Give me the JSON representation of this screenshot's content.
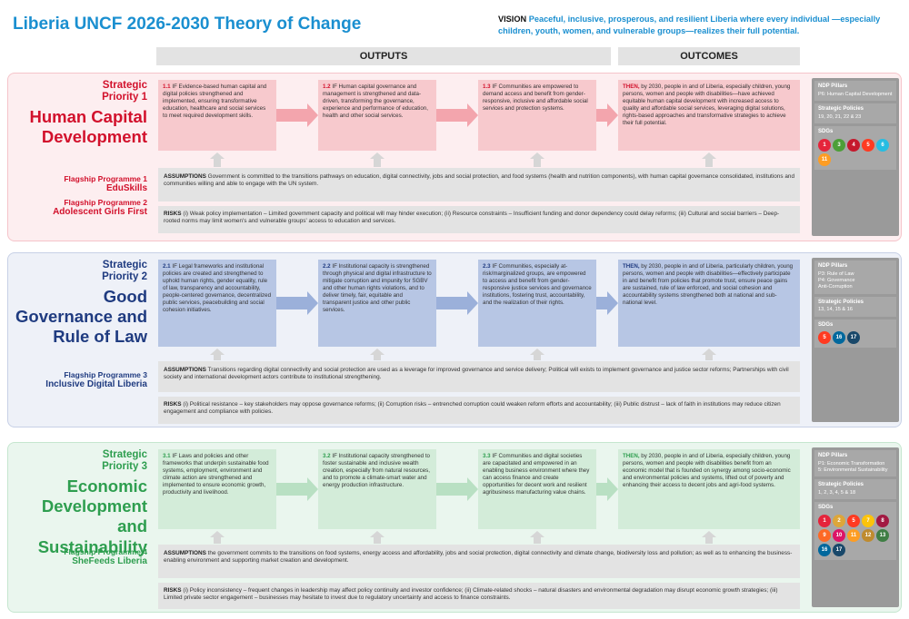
{
  "header": {
    "title": "Liberia UNCF 2026-2030 Theory of Change",
    "vision_label": "VISION",
    "vision": "Peaceful, inclusive, prosperous, and resilient Liberia where every individual —especially children, youth, women, and vulnerable groups—realizes their full potential."
  },
  "columns": {
    "outputs": "OUTPUTS",
    "outcomes": "OUTCOMES"
  },
  "labels": {
    "then": "THEN,",
    "assumptions": "ASSUMPTIONS",
    "risks": "RISKS",
    "ndp": "NDP Pillars",
    "policies": "Strategic Policies",
    "sdgs": "SDGs"
  },
  "priorities": [
    {
      "label": "Strategic Priority 1",
      "name": "Human Capital Development",
      "flagships": [
        {
          "label": "Flagship Programme 1",
          "name": "EduSkills"
        },
        {
          "label": "Flagship Programme 2",
          "name": "Adolescent Girls First"
        }
      ],
      "outputs": [
        {
          "id": "1.1",
          "text": "IF Evidence-based human capital and digital policies strengthened and implemented, ensuring transformative education, healthcare and social services to meet required development skills."
        },
        {
          "id": "1.2",
          "text": "IF Human capital governance and management is strengthened and data-driven, transforming the governance, experience and performance of education, health and other social services."
        },
        {
          "id": "1.3",
          "text": "IF Communities are empowered to demand access and benefit from gender-responsive, inclusive and affordable social services and protection systems."
        }
      ],
      "outcome": "by 2030, people in and of Liberia, especially children, young persons, women and people with disabilities—have achieved equitable human capital development with increased access to quality and affordable social services, leveraging digital solutions, rights-based approaches and transformative strategies to achieve their full potential.",
      "assumptions": "Government is committed to the transitions pathways on education, digital connectivity, jobs and social protection, and food systems (health and nutrition components), with human capital governance consolidated, institutions and communities willing and able to engage with the UN system.",
      "risks": "(i) Weak policy implementation – Limited government capacity and political will may hinder execution; (ii) Resource constraints – Insufficient funding and donor dependency could delay reforms; (iii) Cultural and social barriers – Deep-rooted norms may limit women's and vulnerable groups' access to education and services.",
      "ndp": [
        "P6: Human Capital Development"
      ],
      "policies": "19, 20, 21, 22 & 23",
      "sdgs": [
        1,
        3,
        4,
        5,
        6,
        11
      ]
    },
    {
      "label": "Strategic Priority 2",
      "name": "Good Governance and Rule of Law",
      "flagships": [
        {
          "label": "Flagship Programme 3",
          "name": "Inclusive Digital Liberia"
        }
      ],
      "outputs": [
        {
          "id": "2.1",
          "text": "IF Legal frameworks and institutional policies are created and strengthened to uphold human rights, gender equality, rule of law, transparency and accountability, people-centered governance, decentralized public services, peacebuilding and social cohesion initiatives."
        },
        {
          "id": "2.2",
          "text": "IF Institutional capacity is strengthened through physical and digital infrastructure to mitigate corruption and impunity for SGBV and other human rights violations, and to deliver timely, fair, equitable and transparent justice and other public services."
        },
        {
          "id": "2.3",
          "text": "IF Communities, especially at-risk/marginalized groups, are empowered to access and benefit from gender-responsive justice services and governance institutions, fostering trust, accountability, and the realization of their rights."
        }
      ],
      "outcome": "by 2030, people in and of Liberia, particularly children, young persons, women and people with disabilities—effectively participate in and benefit from policies that promote trust, ensure peace gains are sustained, rule of law enforced, and social cohesion and accountability systems strengthened both at national and sub-national level.",
      "assumptions": "Transitions regarding digital connectivity and social protection are used as a leverage for improved governance and service delivery; Political will exists to implement governance and justice sector reforms; Partnerships with civil society and international development actors contribute to institutional strengthening.",
      "risks": "(i) Political resistance – key stakeholders may oppose governance reforms; (ii) Corruption risks – entrenched corruption could weaken reform efforts and accountability; (iii) Public distrust – lack of faith in institutions may reduce citizen engagement and compliance with policies.",
      "ndp": [
        "P3: Rule of Law",
        "P4: Governance",
        "Anti-Corruption"
      ],
      "policies": "13, 14, 15 & 16",
      "sdgs": [
        5,
        16,
        17
      ]
    },
    {
      "label": "Strategic Priority 3",
      "name": "Economic Development and Sustainability",
      "flagships": [
        {
          "label": "Flagship Programme 4",
          "name": "SheFeeds Liberia"
        }
      ],
      "outputs": [
        {
          "id": "3.1",
          "text": "IF Laws and policies and other frameworks that underpin sustainable food systems, employment, environment and climate action are strengthened and implemented to ensure economic growth, productivity and livelihood."
        },
        {
          "id": "3.2",
          "text": "IF Institutional capacity strengthened to foster sustainable and inclusive wealth creation, especially from natural resources, and to promote a climate-smart water and energy production infrastructure."
        },
        {
          "id": "3.3",
          "text": "IF Communities and digital societies are capacitated and empowered in an enabling business environment where they can access finance and create opportunities for decent work and resilient agribusiness manufacturing value chains."
        }
      ],
      "outcome": "by 2030, people in and of Liberia, especially children, young persons, women and people with disabilities benefit from an economic model that is founded on synergy among socio-economic and environmental policies and systems, lifted out of poverty and enhancing their access to decent jobs and agri-food systems.",
      "assumptions": "the government commits to the transitions on food systems, energy access and affordability, jobs and social protection, digital connectivity and climate change, biodiversity loss and pollution; as well as to enhancing the business-enabling environment and supporting market creation and development.",
      "risks": "(i) Policy inconsistency – frequent changes in leadership may affect policy continuity and investor confidence; (ii) Climate-related shocks – natural disasters and environmental degradation may disrupt economic growth strategies; (iii) Limited private sector engagement – businesses may hesitate to invest due to regulatory uncertainty and access to finance constraints.",
      "ndp": [
        "P1: Economic Transformation",
        "5: Environmental Sustainability"
      ],
      "policies": "1, 2, 3, 4, 5 & 18",
      "sdgs": [
        1,
        2,
        5,
        7,
        8,
        9,
        10,
        11,
        12,
        13,
        16,
        17
      ]
    }
  ]
}
